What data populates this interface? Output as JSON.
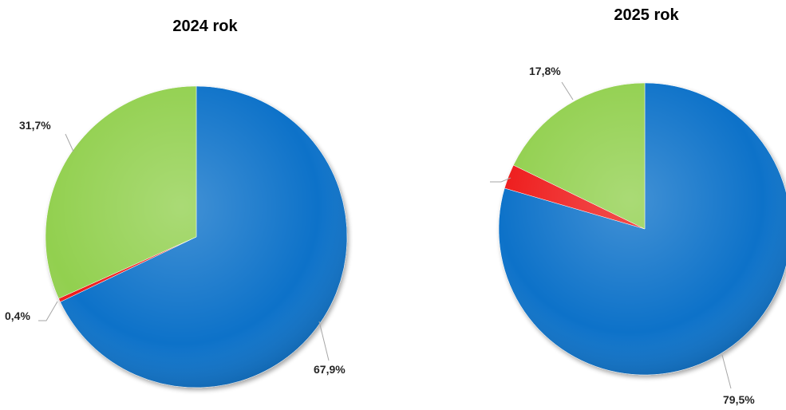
{
  "chart_data": [
    {
      "type": "pie",
      "title": "2024 rok",
      "start": "12 o'clock",
      "direction": "clockwise",
      "slices": [
        {
          "value": 67.9,
          "label": "67,9%",
          "color": "#0b72c9"
        },
        {
          "value": 0.4,
          "label": "0,4%",
          "color": "#ee1c1c"
        },
        {
          "value": 31.7,
          "label": "31,7%",
          "color": "#92d050"
        }
      ]
    },
    {
      "type": "pie",
      "title": "2025 rok",
      "start": "12 o'clock",
      "direction": "clockwise",
      "slices": [
        {
          "value": 79.5,
          "label": "79,5%",
          "color": "#0b72c9"
        },
        {
          "value": 2.7,
          "label": "",
          "color": "#ee1c1c"
        },
        {
          "value": 17.8,
          "label": "17,8%",
          "color": "#92d050"
        }
      ]
    }
  ]
}
